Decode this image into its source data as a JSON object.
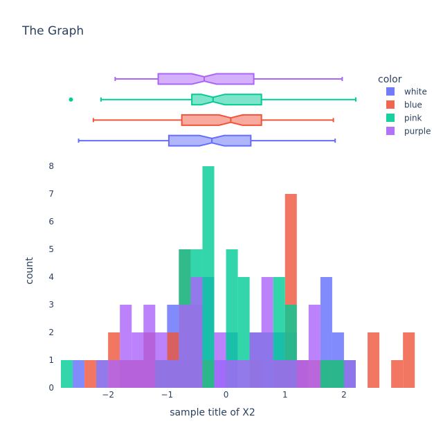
{
  "chart_data": {
    "type": "bar",
    "title": "The Graph",
    "xlabel": "sample title of X2",
    "ylabel": "count",
    "xlim": [
      -2.8,
      2.2
    ],
    "ylim": [
      0,
      8
    ],
    "x_ticks": [
      -2,
      -1,
      0,
      1,
      2
    ],
    "x_tick_labels": [
      "−2",
      "−1",
      "0",
      "1",
      "2"
    ],
    "y_ticks": [
      0,
      1,
      2,
      3,
      4,
      5,
      6,
      7,
      8
    ],
    "bin_width": 0.2,
    "bin_edges_start": -2.8,
    "grid": false,
    "barmode": "overlay",
    "legend": {
      "title": "color",
      "position": "top-right"
    },
    "series": [
      {
        "name": "white",
        "color": "#636efa",
        "counts": [
          0,
          1,
          0,
          0,
          0,
          1,
          1,
          2,
          1,
          3,
          1,
          1,
          4,
          1,
          2,
          0,
          2,
          2,
          2,
          2,
          1,
          0,
          4,
          2,
          1,
          0,
          0,
          0,
          0,
          0,
          0,
          0,
          0,
          0,
          0,
          0
        ],
        "box": {
          "min": -2.5,
          "q1": -0.97,
          "median": -0.24,
          "q3": 0.42,
          "max": 1.85,
          "notch": [
            -0.45,
            -0.03
          ],
          "outliers": []
        }
      },
      {
        "name": "blue",
        "color": "#EF553B",
        "counts": [
          0,
          0,
          1,
          0,
          2,
          1,
          1,
          2,
          1,
          2,
          5,
          3,
          1,
          0,
          0,
          0,
          1,
          0,
          1,
          7,
          1,
          1,
          1,
          1,
          0,
          0,
          2,
          0,
          1,
          2,
          0,
          0,
          0,
          0,
          0,
          0
        ],
        "box": {
          "min": -2.25,
          "q1": -0.75,
          "median": 0.08,
          "q3": 0.6,
          "max": 1.82,
          "notch": [
            -0.12,
            0.28
          ],
          "outliers": []
        }
      },
      {
        "name": "pink",
        "color": "#00cc96",
        "counts": [
          1,
          0,
          0,
          1,
          0,
          0,
          0,
          0,
          1,
          1,
          5,
          5,
          8,
          0,
          5,
          4,
          2,
          2,
          4,
          3,
          0,
          0,
          1,
          1,
          1,
          0,
          0,
          0,
          0,
          0,
          0,
          0,
          0,
          0,
          0,
          0
        ],
        "box": {
          "min": -2.12,
          "q1": -0.58,
          "median": -0.22,
          "q3": 0.6,
          "max": 2.2,
          "notch": [
            -0.42,
            -0.02
          ],
          "outliers": [
            -2.63
          ]
        }
      },
      {
        "name": "purple",
        "color": "#ab63fa",
        "counts": [
          0,
          0,
          0,
          1,
          1,
          3,
          2,
          3,
          2,
          1,
          3,
          4,
          0,
          2,
          1,
          1,
          2,
          4,
          1,
          1,
          1,
          3,
          0,
          0,
          1,
          0,
          0,
          0,
          0,
          0,
          0,
          0,
          0,
          0,
          0,
          0
        ],
        "box": {
          "min": -1.88,
          "q1": -1.15,
          "median": -0.37,
          "q3": 0.47,
          "max": 1.97,
          "notch": [
            -0.58,
            -0.16
          ],
          "outliers": []
        }
      }
    ]
  }
}
